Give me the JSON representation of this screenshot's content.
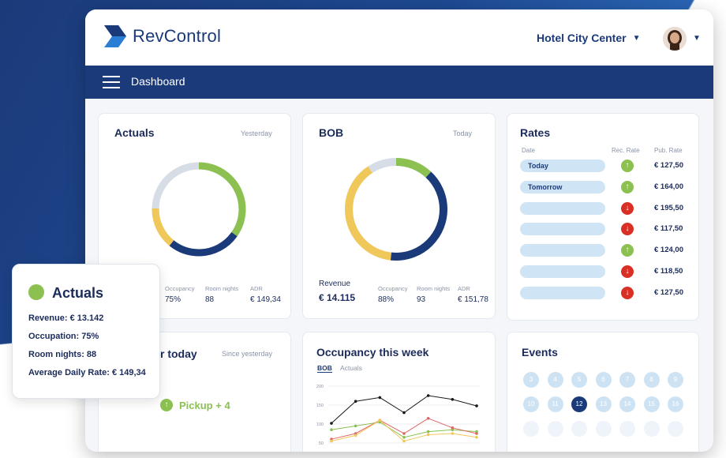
{
  "app": {
    "name": "RevControl"
  },
  "header": {
    "hotel": "Hotel City Center"
  },
  "nav": {
    "title": "Dashboard"
  },
  "actuals_card": {
    "title": "Actuals",
    "period": "Yesterday",
    "stats": [
      {
        "label": "Occupancy",
        "value": "75%"
      },
      {
        "label": "Room nights",
        "value": "88"
      },
      {
        "label": "ADR",
        "value": "€ 149,34"
      }
    ]
  },
  "bob_card": {
    "title": "BOB",
    "period": "Today",
    "revenue_label": "Revenue",
    "revenue_value": "€ 14.115",
    "stats": [
      {
        "label": "Occupancy",
        "value": "88%"
      },
      {
        "label": "Room nights",
        "value": "93"
      },
      {
        "label": "ADR",
        "value": "€ 151,78"
      }
    ]
  },
  "rates_card": {
    "title": "Rates",
    "col_date": "Date",
    "col_rec": "Rec. Rate",
    "col_pub": "Pub. Rate",
    "rows": [
      {
        "date": "Today",
        "trend": "up",
        "rate": "€ 127,50"
      },
      {
        "date": "Tomorrow",
        "trend": "up",
        "rate": "€ 164,00"
      },
      {
        "date": "",
        "trend": "down",
        "rate": "€ 195,50"
      },
      {
        "date": "",
        "trend": "down",
        "rate": "€ 117,50"
      },
      {
        "date": "",
        "trend": "up",
        "rate": "€ 124,00"
      },
      {
        "date": "",
        "trend": "down",
        "rate": "€ 118,50"
      },
      {
        "date": "",
        "trend": "down",
        "rate": "€ 127,50"
      }
    ]
  },
  "pickup_card": {
    "title_fragment": "r today",
    "period": "Since yesterday",
    "pickup": "Pickup + 4"
  },
  "occupancy_card": {
    "title": "Occupancy this week",
    "tab_bob": "BOB",
    "tab_actuals": "Actuals"
  },
  "events_card": {
    "title": "Events",
    "row1": [
      "3",
      "4",
      "5",
      "6",
      "7",
      "8",
      "9"
    ],
    "row2": [
      "10",
      "11",
      "12",
      "13",
      "14",
      "15",
      "16"
    ],
    "active_day": "12"
  },
  "popup": {
    "title": "Actuals",
    "revenue": "Revenue: € 13.142",
    "occupation": "Occupation: 75%",
    "room_nights": "Room nights: 88",
    "adr": "Average Daily Rate: € 149,34"
  },
  "chart_data": {
    "type": "line",
    "title": "Occupancy this week",
    "y_ticks": [
      "200",
      "150",
      "100",
      "50"
    ],
    "ylim": [
      50,
      200
    ],
    "x": [
      1,
      2,
      3,
      4,
      5,
      6,
      7
    ],
    "series": [
      {
        "name": "black",
        "color": "#1a1a1a",
        "values": [
          102,
          160,
          170,
          130,
          175,
          165,
          148
        ]
      },
      {
        "name": "green",
        "color": "#8cc152",
        "values": [
          85,
          95,
          105,
          65,
          80,
          85,
          80
        ]
      },
      {
        "name": "red",
        "color": "#e06666",
        "values": [
          60,
          75,
          110,
          75,
          115,
          90,
          75
        ]
      },
      {
        "name": "yellow",
        "color": "#f0c85a",
        "values": [
          55,
          70,
          110,
          55,
          72,
          75,
          65
        ]
      }
    ]
  },
  "colors": {
    "brand": "#1b3a7a",
    "green": "#8cc152",
    "yellow": "#f0c85a",
    "red": "#d93025",
    "grey": "#d7dde6",
    "pill": "#cfe5f5"
  }
}
